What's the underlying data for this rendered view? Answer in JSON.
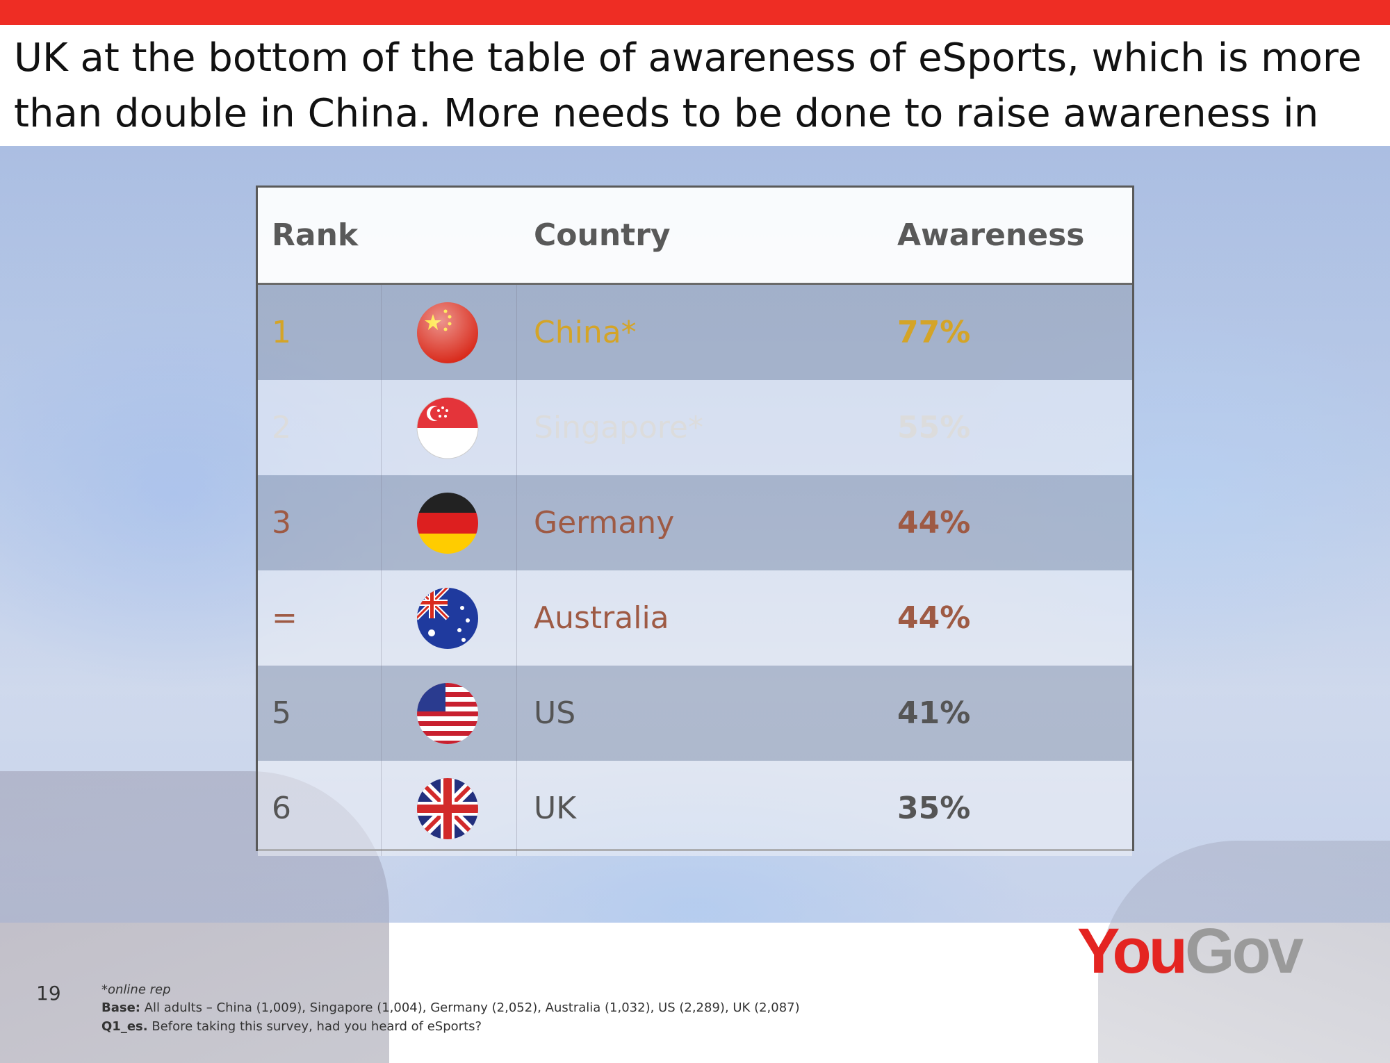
{
  "title": "UK at the bottom of the table of awareness of eSports, which is more than double in China. More needs to be done to raise awareness in UK",
  "page_number": "19",
  "logo_text": "YouGov",
  "colors": {
    "accent_bar": "#ee2d24",
    "china": "#d4a427",
    "singapore": "#dcdcdc",
    "germany": "#9e5a44",
    "australia": "#9e5a44",
    "us": "#555555",
    "uk": "#555555"
  },
  "chart_data": {
    "type": "table",
    "columns": [
      "Rank",
      "Country",
      "Awareness"
    ],
    "rows": [
      {
        "rank": "1",
        "country": "China*",
        "awareness": "77%",
        "value": 77,
        "flag": "china-flag-icon"
      },
      {
        "rank": "2",
        "country": "Singapore*",
        "awareness": "55%",
        "value": 55,
        "flag": "singapore-flag-icon"
      },
      {
        "rank": "3",
        "country": "Germany",
        "awareness": "44%",
        "value": 44,
        "flag": "germany-flag-icon"
      },
      {
        "rank": "=",
        "country": "Australia",
        "awareness": "44%",
        "value": 44,
        "flag": "australia-flag-icon"
      },
      {
        "rank": "5",
        "country": "US",
        "awareness": "41%",
        "value": 41,
        "flag": "us-flag-icon"
      },
      {
        "rank": "6",
        "country": "UK",
        "awareness": "35%",
        "value": 35,
        "flag": "uk-flag-icon"
      }
    ]
  },
  "footnotes": {
    "online_rep": "*online rep",
    "base_label": "Base:",
    "base_text": " All adults – China (1,009), Singapore (1,004), Germany (2,052), Australia (1,032), US (2,289), UK (2,087)",
    "question_label": "Q1_es.",
    "question_text": " Before taking this survey, had you heard of eSports?"
  }
}
